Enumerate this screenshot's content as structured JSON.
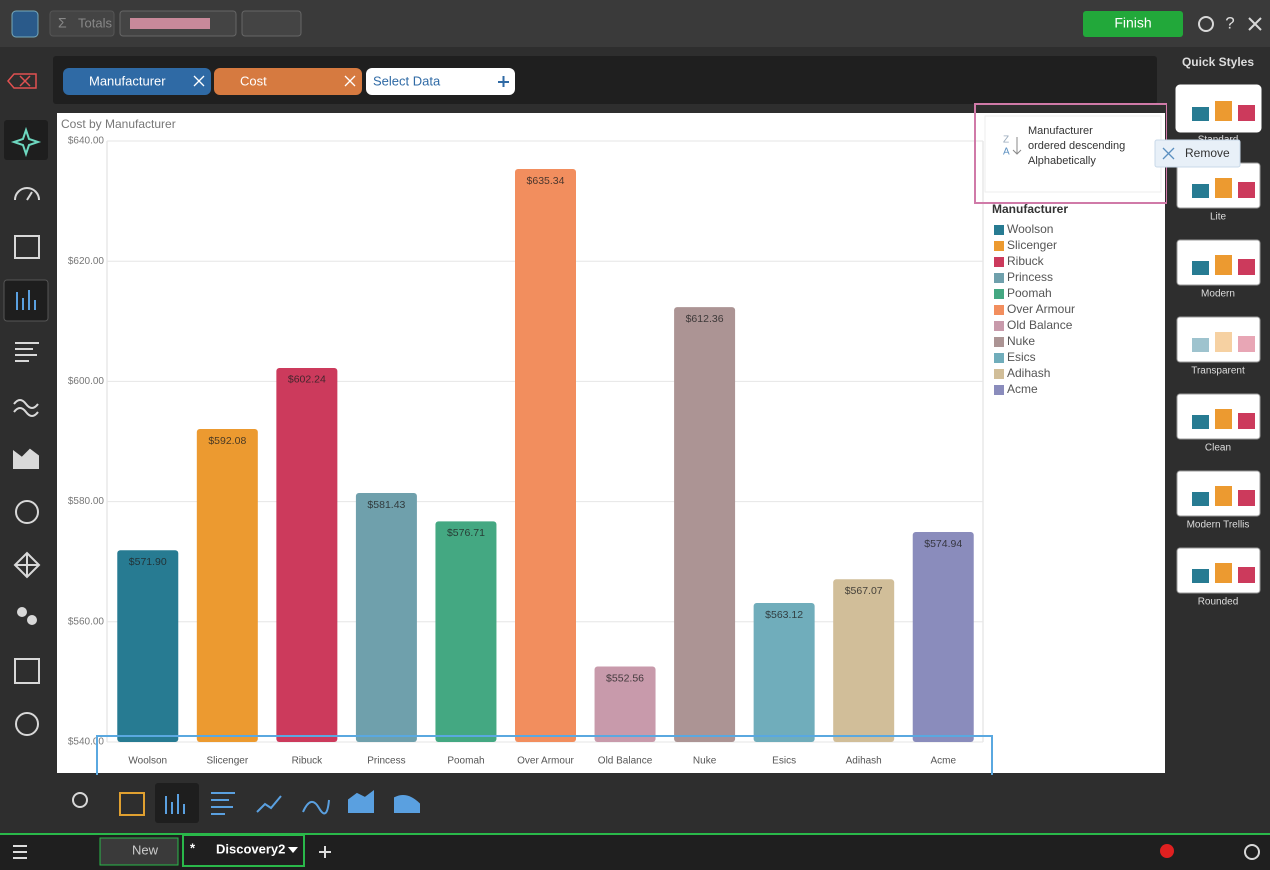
{
  "toolbar": {
    "totals": "Totals",
    "finish": "Finish",
    "help": "?"
  },
  "chips": {
    "first": "Manufacturer",
    "second": "Cost",
    "select": "Select Data"
  },
  "sort_panel": {
    "line1": "Manufacturer",
    "line2": "ordered descending",
    "line3": "Alphabetically",
    "menu": "Remove"
  },
  "quick_styles": {
    "title": "Quick Styles",
    "items": [
      "Standard",
      "Lite",
      "Modern",
      "Transparent",
      "Clean",
      "Modern Trellis",
      "Rounded"
    ]
  },
  "tabs": {
    "first": "New",
    "modified": "*",
    "second": "Discovery2"
  },
  "chart_data": {
    "type": "bar",
    "title": "Cost by Manufacturer",
    "legend_title": "Manufacturer",
    "categories": [
      "Woolson",
      "Slicenger",
      "Ribuck",
      "Princess",
      "Poomah",
      "Over Armour",
      "Old Balance",
      "Nuke",
      "Esics",
      "Adihash",
      "Acme"
    ],
    "values": [
      571.9,
      592.08,
      602.24,
      581.43,
      576.71,
      635.34,
      552.56,
      612.36,
      563.12,
      567.07,
      574.94
    ],
    "value_labels": [
      "$571.90",
      "$592.08",
      "$602.24",
      "$581.43",
      "$576.71",
      "$635.34",
      "$552.56",
      "$612.36",
      "$563.12",
      "$567.07",
      "$574.94"
    ],
    "colors": [
      "#277b92",
      "#ec9a30",
      "#cc3a5c",
      "#6fa0ac",
      "#44a882",
      "#f28e5e",
      "#c89aab",
      "#ac9494",
      "#70adbb",
      "#d1be99",
      "#8a8cbc"
    ],
    "ylim": [
      540,
      640
    ],
    "yticks": [
      {
        "value": 540,
        "label": "$540.00"
      },
      {
        "value": 560,
        "label": "$560.00"
      },
      {
        "value": 580,
        "label": "$580.00"
      },
      {
        "value": 600,
        "label": "$600.00"
      },
      {
        "value": 620,
        "label": "$620.00"
      },
      {
        "value": 640,
        "label": "$640.00"
      }
    ],
    "grid": true,
    "legend": "right"
  }
}
